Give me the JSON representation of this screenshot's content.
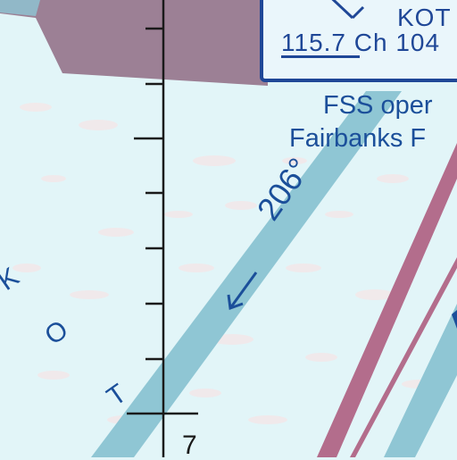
{
  "map": {
    "colors": {
      "background": "#e2f5f8",
      "airway_blue": "#8fc6d4",
      "restricted_magenta": "#b36d8c",
      "label_blue": "#1b4f9a",
      "tick_black": "#1a1a1a"
    },
    "station_box": {
      "identifier": "KOT",
      "frequency": "115.7",
      "channel": "Ch 104"
    },
    "fss_note": {
      "line1": "FSS oper",
      "line2": "Fairbanks F"
    },
    "course_label": "206°",
    "course_arrow": "←",
    "region_letters": [
      "K",
      "O",
      "T"
    ],
    "tick_label": "7"
  }
}
